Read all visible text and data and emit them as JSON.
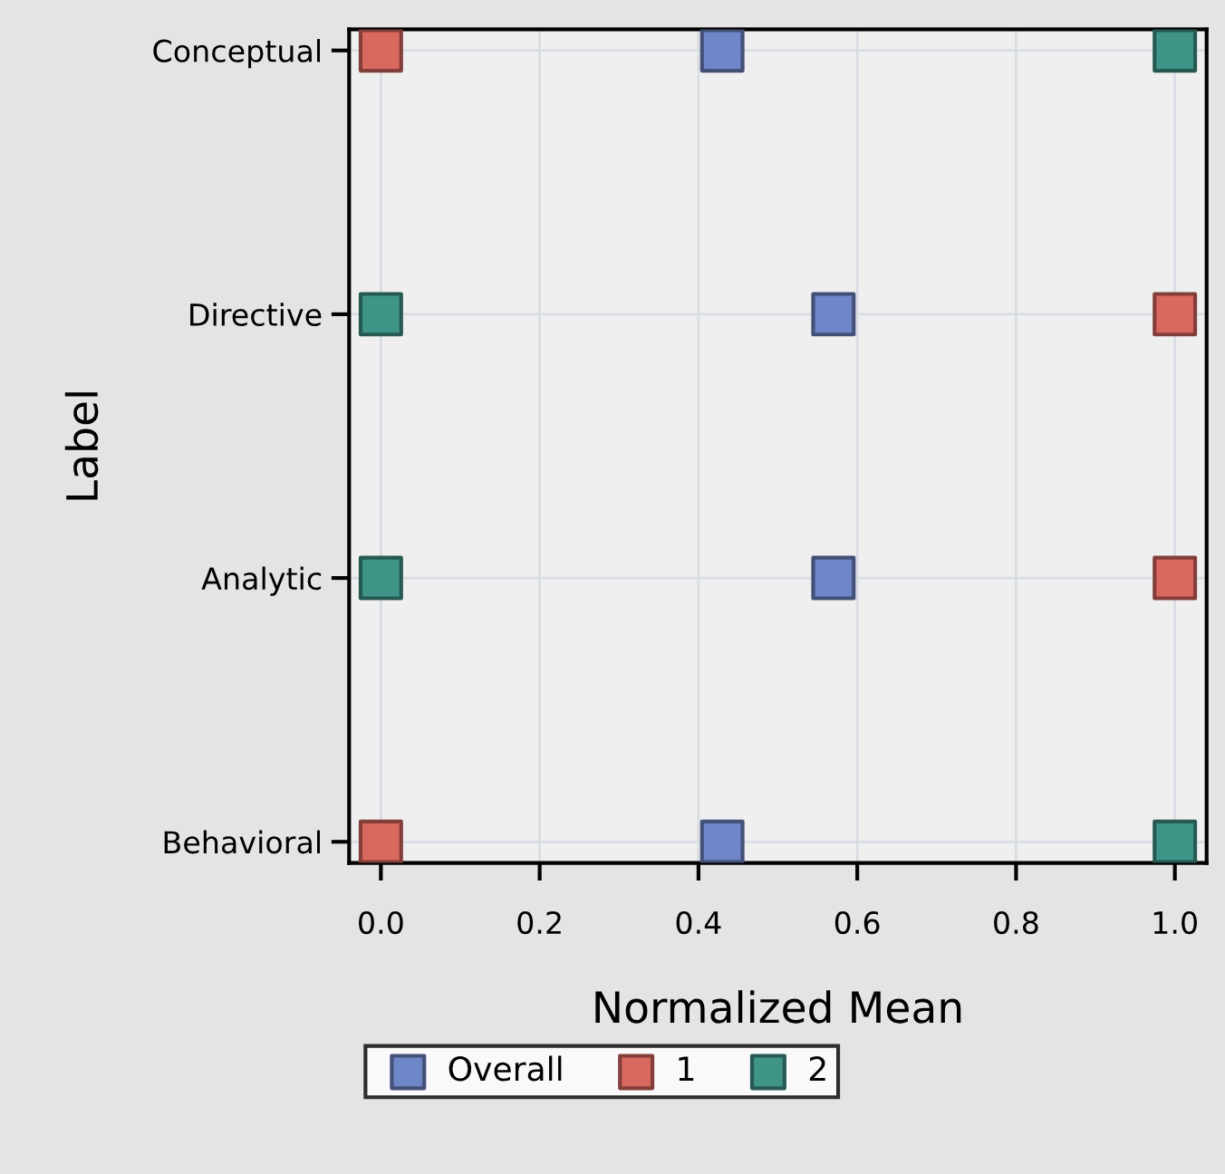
{
  "chart_data": {
    "type": "scatter",
    "orientation": "horizontal",
    "xlabel": "Normalized Mean",
    "ylabel": "Label",
    "categories": [
      "Conceptual",
      "Directive",
      "Analytic",
      "Behavioral"
    ],
    "series": [
      {
        "name": "Overall",
        "color": "#6f86c8",
        "values": [
          0.43,
          0.57,
          0.57,
          0.43
        ]
      },
      {
        "name": "1",
        "color": "#d9685f",
        "values": [
          0,
          1,
          1,
          0
        ]
      },
      {
        "name": "2",
        "color": "#3f9488",
        "values": [
          1,
          0,
          0,
          1
        ]
      }
    ],
    "xlim": [
      -0.04,
      1.04
    ],
    "xticks": [
      {
        "value": 0,
        "label": "0.0"
      },
      0.2,
      0.4,
      0.6,
      0.8,
      {
        "value": 1,
        "label": "1.0"
      }
    ],
    "grid": true,
    "legend": "bottom",
    "marker": "square"
  }
}
